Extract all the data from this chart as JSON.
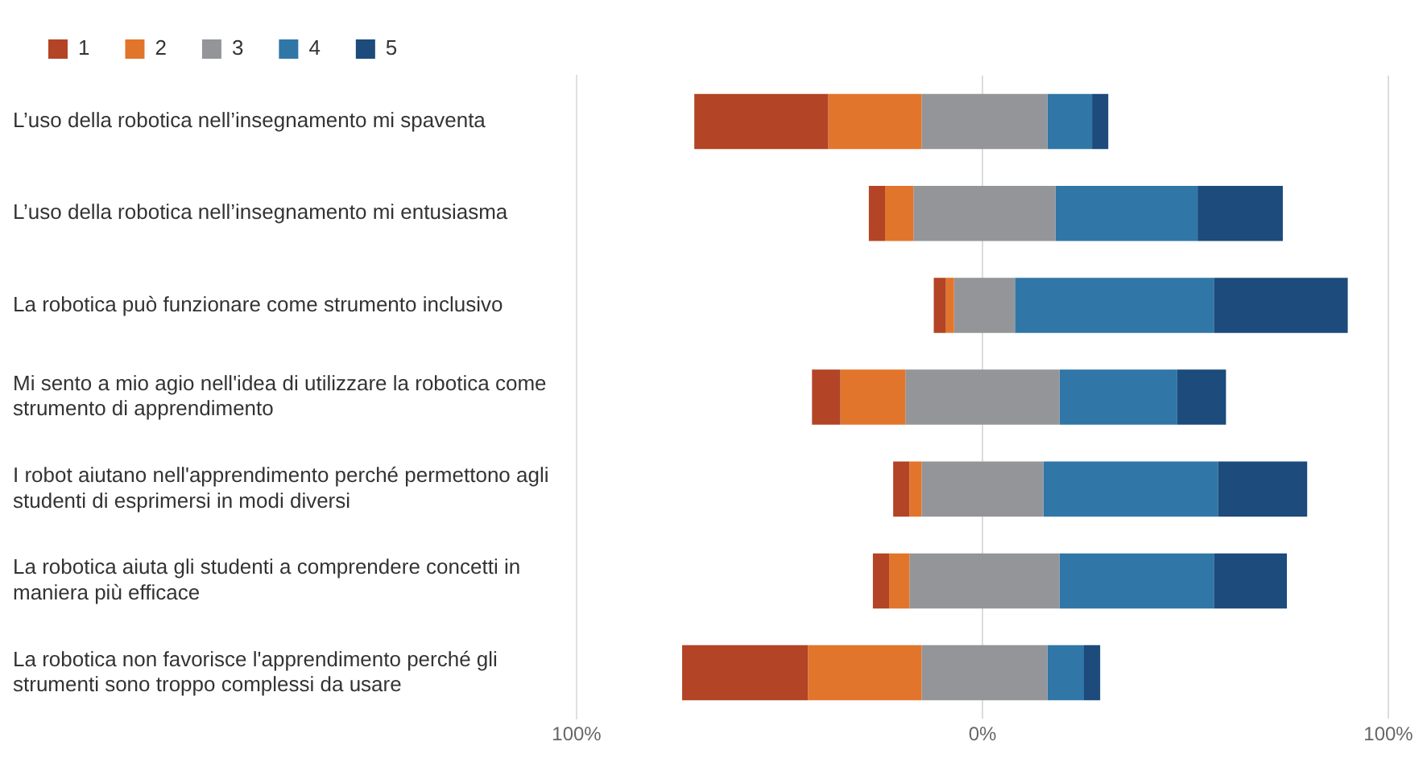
{
  "chart_data": {
    "type": "bar",
    "orientation": "horizontal",
    "categories": [
      "L’uso della robotica nell’insegnamento mi spaventa",
      "L’uso della robotica nell’insegnamento mi entusiasma",
      "La robotica può funzionare come strumento inclusivo",
      "Mi sento a mio agio nell'idea di utilizzare la robotica come strumento di apprendimento",
      "I robot aiutano nell'apprendimento perché permettono agli studenti di esprimersi in modi diversi",
      "La robotica aiuta gli studenti a comprendere concetti in maniera più efficace",
      "La robotica non favorisce l'apprendimento perché gli strumenti sono troppo complessi da usare"
    ],
    "series": [
      {
        "name": "1",
        "color": "#b34425",
        "values": [
          33,
          4,
          3,
          7,
          4,
          4,
          31
        ],
        "base": [
          -71,
          -28,
          -12,
          -42,
          -22,
          -27,
          -74
        ]
      },
      {
        "name": "2",
        "color": "#e2752c",
        "values": [
          23,
          7,
          2,
          16,
          3,
          5,
          28
        ],
        "base": [
          -38,
          -24,
          -9,
          -35,
          -18,
          -23,
          -43
        ]
      },
      {
        "name": "3",
        "color": "#949598",
        "values": [
          31,
          35,
          15,
          38,
          30,
          37,
          31
        ],
        "base": [
          -15,
          -17,
          -7,
          -19,
          -15,
          -18,
          -15
        ]
      },
      {
        "name": "4",
        "color": "#3077a8",
        "values": [
          11,
          35,
          49,
          29,
          43,
          38,
          9
        ],
        "base": [
          16,
          18,
          8,
          19,
          15,
          19,
          16
        ]
      },
      {
        "name": "5",
        "color": "#1c4b7c",
        "values": [
          4,
          21,
          33,
          12,
          22,
          18,
          4
        ],
        "base": [
          27,
          53,
          57,
          48,
          58,
          57,
          25
        ]
      }
    ],
    "xlim": [
      -100,
      100
    ],
    "xticks": [
      {
        "value": -100,
        "label": "100%"
      },
      {
        "value": 0,
        "label": "0%"
      },
      {
        "value": 100,
        "label": "100%"
      }
    ],
    "grid": "x",
    "legend": "top left"
  }
}
